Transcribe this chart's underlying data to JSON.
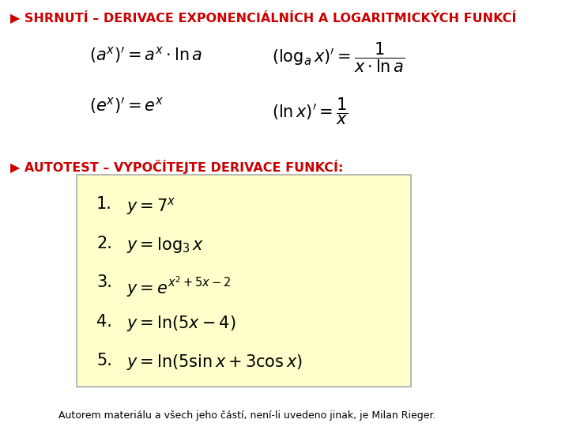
{
  "bg_color": "#ffffff",
  "title1_text": "▶ SHRNUTÍ – DERIVACE EXPONENCIÁLNÍCH A LOGARITMICKÝCH FUNKCÍ",
  "title2_text": "▶ AUTOTEST – VYPOČÍTEJTE DERIVACE FUNKCÍ:",
  "footer": "Autorem materiálu a všech jeho částí, není-li uvedeno jinak, je Milan Rieger.",
  "red_color": "#cc0000",
  "box_bg": "#ffffcc",
  "box_edge": "#aaaaaa",
  "title_fontsize": 11.5,
  "formula_fontsize": 15,
  "item_fontsize": 15,
  "footer_fontsize": 9,
  "formula_left_1": "$\\left(a^x\\right)' = a^x \\cdot \\ln a$",
  "formula_left_2": "$\\left(e^x\\right)' = e^x$",
  "formula_right_1": "$\\left(\\log_a x\\right)' = \\dfrac{1}{x \\cdot \\ln a}$",
  "formula_right_2": "$\\left(\\ln x\\right)' = \\dfrac{1}{x}$",
  "items": [
    "$y = 7^x$",
    "$y = \\log_3 x$",
    "$y = e^{x^2+5x-2}$",
    "$y = \\ln(5x-4)$",
    "$y = \\ln(5\\sin x + 3\\cos x)$"
  ]
}
